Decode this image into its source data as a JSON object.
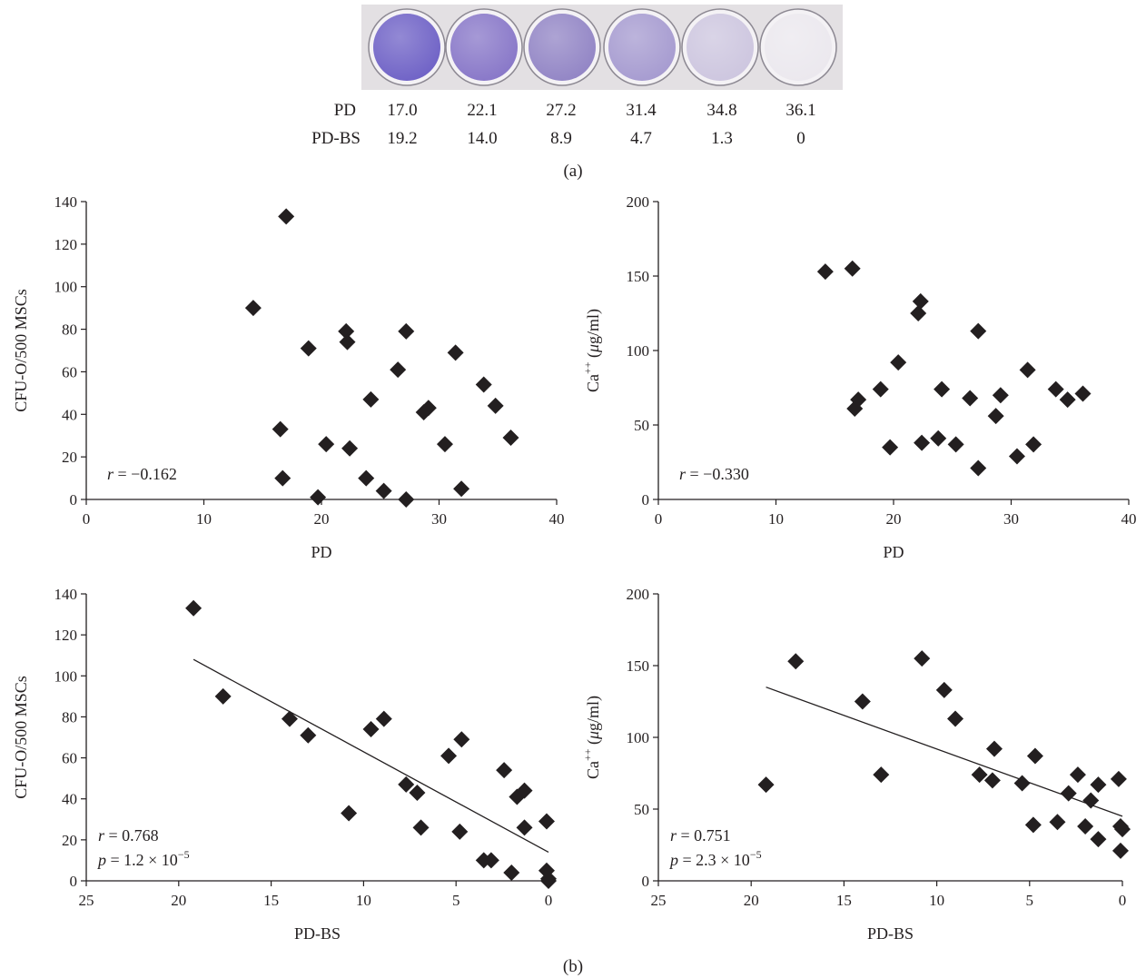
{
  "panel_a": {
    "label": "(a)",
    "plate_colors": [
      "#6f62c6",
      "#8877c8",
      "#9285c5",
      "#a69bd0",
      "#cdc6df",
      "#ebe8ee"
    ],
    "rows": [
      {
        "label": "PD",
        "values": [
          "17.0",
          "22.1",
          "27.2",
          "31.4",
          "34.8",
          "36.1"
        ]
      },
      {
        "label": "PD-BS",
        "values": [
          "19.2",
          "14.0",
          "8.9",
          "4.7",
          "1.3",
          "0"
        ]
      }
    ]
  },
  "panel_b": {
    "label": "(b)"
  },
  "marker": {
    "shape": "diamond",
    "color": "#231f20"
  },
  "chart_data": [
    {
      "type": "scatter",
      "xlabel": "PD",
      "ylabel": "CFU-O/500 MSCs",
      "xlim": [
        0,
        40
      ],
      "ylim": [
        0,
        140
      ],
      "xticks": [
        0,
        10,
        20,
        30,
        40
      ],
      "yticks": [
        0,
        20,
        40,
        60,
        80,
        100,
        120,
        140
      ],
      "x_reversed": false,
      "annotation": [
        "r = −0.162"
      ],
      "trendline": null,
      "points": [
        [
          14.2,
          90
        ],
        [
          16.5,
          33
        ],
        [
          16.7,
          10
        ],
        [
          17.0,
          133
        ],
        [
          18.9,
          71
        ],
        [
          19.7,
          1
        ],
        [
          20.4,
          26
        ],
        [
          22.1,
          79
        ],
        [
          22.2,
          74
        ],
        [
          22.4,
          24
        ],
        [
          23.8,
          10
        ],
        [
          24.2,
          47
        ],
        [
          25.3,
          4
        ],
        [
          26.5,
          61
        ],
        [
          27.2,
          79
        ],
        [
          27.2,
          0
        ],
        [
          28.7,
          41
        ],
        [
          29.1,
          43
        ],
        [
          30.5,
          26
        ],
        [
          31.4,
          69
        ],
        [
          31.9,
          5
        ],
        [
          33.8,
          54
        ],
        [
          34.8,
          44
        ],
        [
          36.1,
          29
        ]
      ]
    },
    {
      "type": "scatter",
      "xlabel": "PD",
      "ylabel": "Ca++ (μg/ml)",
      "xlim": [
        0,
        40
      ],
      "ylim": [
        0,
        200
      ],
      "xticks": [
        0,
        10,
        20,
        30,
        40
      ],
      "yticks": [
        0,
        50,
        100,
        150,
        200
      ],
      "x_reversed": false,
      "annotation": [
        "r = −0.330"
      ],
      "trendline": null,
      "points": [
        [
          14.2,
          153
        ],
        [
          16.5,
          155
        ],
        [
          16.7,
          61
        ],
        [
          17.0,
          67
        ],
        [
          18.9,
          74
        ],
        [
          19.7,
          35
        ],
        [
          20.4,
          92
        ],
        [
          22.1,
          125
        ],
        [
          22.3,
          133
        ],
        [
          22.4,
          38
        ],
        [
          23.8,
          41
        ],
        [
          24.1,
          74
        ],
        [
          25.3,
          37
        ],
        [
          26.5,
          68
        ],
        [
          27.2,
          113
        ],
        [
          27.2,
          21
        ],
        [
          28.7,
          56
        ],
        [
          29.1,
          70
        ],
        [
          30.5,
          29
        ],
        [
          31.4,
          87
        ],
        [
          31.9,
          37
        ],
        [
          33.8,
          74
        ],
        [
          34.8,
          67
        ],
        [
          36.1,
          71
        ]
      ]
    },
    {
      "type": "scatter",
      "xlabel": "PD-BS",
      "ylabel": "CFU-O/500 MSCs",
      "xlim": [
        25,
        0
      ],
      "ylim": [
        0,
        140
      ],
      "xticks": [
        25,
        20,
        15,
        10,
        5,
        0
      ],
      "yticks": [
        0,
        20,
        40,
        60,
        80,
        100,
        120,
        140
      ],
      "x_reversed": true,
      "annotation": [
        "r = 0.768",
        "p = 1.2 × 10−5"
      ],
      "trendline": {
        "x": [
          19.2,
          0
        ],
        "y": [
          108,
          14
        ]
      },
      "points": [
        [
          19.2,
          133
        ],
        [
          17.6,
          90
        ],
        [
          14.0,
          79
        ],
        [
          13.0,
          71
        ],
        [
          10.8,
          33
        ],
        [
          9.6,
          74
        ],
        [
          8.9,
          79
        ],
        [
          7.7,
          47
        ],
        [
          7.1,
          43
        ],
        [
          6.9,
          26
        ],
        [
          5.4,
          61
        ],
        [
          4.8,
          24
        ],
        [
          4.7,
          69
        ],
        [
          3.5,
          10
        ],
        [
          3.1,
          10
        ],
        [
          2.4,
          54
        ],
        [
          2.0,
          4
        ],
        [
          1.7,
          41
        ],
        [
          1.3,
          44
        ],
        [
          1.3,
          26
        ],
        [
          0.1,
          29
        ],
        [
          0.1,
          5
        ],
        [
          0.0,
          0
        ],
        [
          0.0,
          1
        ]
      ]
    },
    {
      "type": "scatter",
      "xlabel": "PD-BS",
      "ylabel": "Ca++ (μg/ml)",
      "xlim": [
        25,
        0
      ],
      "ylim": [
        0,
        200
      ],
      "xticks": [
        25,
        20,
        15,
        10,
        5,
        0
      ],
      "yticks": [
        0,
        50,
        100,
        150,
        200
      ],
      "x_reversed": true,
      "annotation": [
        "r = 0.751",
        "p = 2.3 × 10−5"
      ],
      "trendline": {
        "x": [
          19.2,
          0
        ],
        "y": [
          135,
          45
        ]
      },
      "points": [
        [
          19.2,
          67
        ],
        [
          17.6,
          153
        ],
        [
          14.0,
          125
        ],
        [
          13.0,
          74
        ],
        [
          10.8,
          155
        ],
        [
          9.6,
          133
        ],
        [
          9.0,
          113
        ],
        [
          7.7,
          74
        ],
        [
          7.0,
          70
        ],
        [
          6.9,
          92
        ],
        [
          5.4,
          68
        ],
        [
          4.8,
          39
        ],
        [
          4.7,
          87
        ],
        [
          3.5,
          41
        ],
        [
          2.9,
          61
        ],
        [
          2.4,
          74
        ],
        [
          2.0,
          38
        ],
        [
          1.7,
          56
        ],
        [
          1.3,
          29
        ],
        [
          1.3,
          67
        ],
        [
          0.2,
          71
        ],
        [
          0.1,
          38
        ],
        [
          0.0,
          36
        ],
        [
          0.1,
          21
        ]
      ]
    }
  ]
}
